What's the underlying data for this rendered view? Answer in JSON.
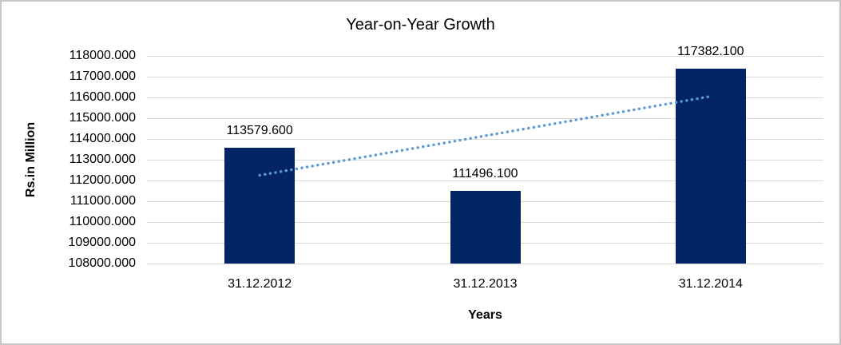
{
  "chart_data": {
    "type": "bar",
    "title": "Year-on-Year Growth",
    "xlabel": "Years",
    "ylabel": "Rs.in Million",
    "categories": [
      "31.12.2012",
      "31.12.2013",
      "31.12.2014"
    ],
    "values": [
      113579.6,
      111496.1,
      117382.1
    ],
    "data_labels": [
      "113579.600",
      "111496.100",
      "117382.100"
    ],
    "ylim": [
      108000,
      118000
    ],
    "y_tick_step": 1000,
    "y_tick_labels": [
      "118000.000",
      "117000.000",
      "116000.000",
      "115000.000",
      "114000.000",
      "113000.000",
      "112000.000",
      "111000.000",
      "110000.000",
      "109000.000",
      "108000.000"
    ],
    "grid": true,
    "legend": "none",
    "trendline": {
      "type": "linear",
      "style": "dotted",
      "start_value": 112251.35,
      "end_value": 116053.85
    },
    "colors": {
      "bar": "#032565",
      "trendline": "#5b9bd5",
      "gridline": "#d9d9d9",
      "text": "#000000",
      "frame_border": "#c6c6c6",
      "background": "#ffffff"
    }
  }
}
